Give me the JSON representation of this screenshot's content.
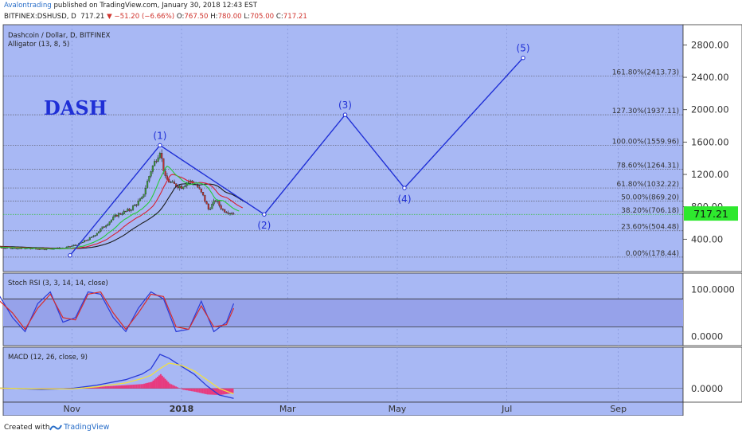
{
  "header": {
    "author": "Avalontrading",
    "published": "published on TradingView.com, January 30, 2018 12:43 EST",
    "symbol": "BITFINEX:DSHUSD, D",
    "last": "717.21",
    "change": "−51.20 (−6.66%)",
    "o_label": "O:",
    "o_val": "767.50",
    "h_label": "H:",
    "h_val": "780.00",
    "l_label": "L:",
    "l_val": "705.00",
    "c_label": "C:",
    "c_val": "717.21"
  },
  "footer": {
    "created_with": "Created with",
    "brand": "TradingView"
  },
  "colors": {
    "pane_bg": "#a8b8f4",
    "wave": "#1f2fd6",
    "fib": "#5a5a66",
    "last_price_badge": "#2ee82e",
    "alligator_jaw": "#1a1a1a",
    "alligator_teeth": "#d81f2f",
    "alligator_lips": "#27c93a",
    "up_candle": "#3b9a3b",
    "down_candle": "#c23030"
  },
  "chart_data": [
    {
      "type": "line",
      "pane": "price",
      "title": "Dashcoin / Dollar, D, BITFINEX",
      "indicator": "Alligator (13, 8, 5)",
      "annotation_text": "DASH",
      "x_ticks": [
        "Nov",
        "2018",
        "Mar",
        "May",
        "Jul",
        "Sep"
      ],
      "y_ticks": [
        "2800.00",
        "2400.00",
        "2000.00",
        "1600.00",
        "1200.00",
        "800.00",
        "400.00"
      ],
      "ylim": [
        0,
        3050
      ],
      "last_price": "717.21",
      "last_price_value": 717.21,
      "fib_levels": [
        {
          "label": "0.00%(178.44)",
          "value": 178.44
        },
        {
          "label": "23.60%(504.48)",
          "value": 504.48
        },
        {
          "label": "38.20%(706.18)",
          "value": 706.18
        },
        {
          "label": "50.00%(869.20)",
          "value": 869.2
        },
        {
          "label": "61.80%(1032.22)",
          "value": 1032.22
        },
        {
          "label": "78.60%(1264.31)",
          "value": 1264.31
        },
        {
          "label": "100.00%(1559.96)",
          "value": 1559.96
        },
        {
          "label": "127.30%(1937.11)",
          "value": 1937.11
        },
        {
          "label": "161.80%(2413.73)",
          "value": 2413.73
        }
      ],
      "wave_points": [
        {
          "label": "",
          "x": "2017-10-31",
          "y": 200
        },
        {
          "label": "(1)",
          "x": "2017-12-20",
          "y": 1560
        },
        {
          "label": "(2)",
          "x": "2018-02-16",
          "y": 706
        },
        {
          "label": "(3)",
          "x": "2018-04-02",
          "y": 1937
        },
        {
          "label": "(4)",
          "x": "2018-05-05",
          "y": 1032
        },
        {
          "label": "(5)",
          "x": "2018-07-10",
          "y": 2640
        }
      ],
      "close_series": {
        "x": [
          "2017-09-01",
          "2017-09-15",
          "2017-10-01",
          "2017-10-15",
          "2017-10-28",
          "2017-11-05",
          "2017-11-12",
          "2017-11-19",
          "2017-11-26",
          "2017-12-03",
          "2017-12-10",
          "2017-12-15",
          "2017-12-20",
          "2017-12-23",
          "2017-12-27",
          "2018-01-01",
          "2018-01-05",
          "2018-01-09",
          "2018-01-13",
          "2018-01-16",
          "2018-01-20",
          "2018-01-24",
          "2018-01-30"
        ],
        "y": [
          320,
          300,
          290,
          280,
          290,
          340,
          420,
          560,
          700,
          760,
          900,
          1250,
          1500,
          1150,
          1080,
          1050,
          1120,
          1080,
          930,
          770,
          880,
          760,
          717
        ]
      }
    },
    {
      "type": "line",
      "pane": "stoch_rsi",
      "title": "Stoch RSI (3, 3, 14, 14, close)",
      "y_ticks": [
        "100.0000",
        "0.0000"
      ],
      "ylim": [
        -20,
        135
      ],
      "bands": [
        80,
        20
      ],
      "x": [
        "2017-09-01",
        "2017-09-08",
        "2017-09-15",
        "2017-09-22",
        "2017-09-29",
        "2017-10-06",
        "2017-10-13",
        "2017-10-20",
        "2017-10-27",
        "2017-11-03",
        "2017-11-10",
        "2017-11-17",
        "2017-11-24",
        "2017-12-01",
        "2017-12-08",
        "2017-12-15",
        "2017-12-22",
        "2017-12-29",
        "2018-01-05",
        "2018-01-12",
        "2018-01-19",
        "2018-01-26",
        "2018-01-30"
      ],
      "series": [
        {
          "values": [
            90,
            20,
            10,
            85,
            40,
            10,
            70,
            95,
            30,
            40,
            95,
            90,
            40,
            10,
            60,
            95,
            80,
            10,
            15,
            75,
            10,
            30,
            70
          ]
        },
        {
          "values": [
            95,
            30,
            15,
            75,
            50,
            15,
            60,
            90,
            40,
            35,
            90,
            95,
            50,
            15,
            50,
            90,
            85,
            20,
            15,
            65,
            20,
            25,
            60
          ]
        }
      ]
    },
    {
      "type": "line",
      "pane": "macd",
      "title": "MACD (12, 26, close, 9)",
      "y_ticks": [
        "0.0000"
      ],
      "ylim": [
        -25,
        75
      ],
      "x": [
        "2017-09-01",
        "2017-09-15",
        "2017-10-01",
        "2017-10-15",
        "2017-11-01",
        "2017-11-15",
        "2017-12-01",
        "2017-12-10",
        "2017-12-15",
        "2017-12-20",
        "2017-12-25",
        "2018-01-01",
        "2018-01-08",
        "2018-01-15",
        "2018-01-22",
        "2018-01-30"
      ],
      "series": [
        {
          "values": [
            2,
            1,
            0,
            -2,
            0,
            6,
            16,
            26,
            36,
            62,
            55,
            40,
            26,
            5,
            -12,
            -18
          ]
        },
        {
          "values": [
            1,
            1,
            0,
            -1,
            -1,
            3,
            10,
            18,
            24,
            36,
            46,
            42,
            32,
            16,
            0,
            -10
          ]
        }
      ],
      "histogram": {
        "x": [
          "2017-09-01",
          "2017-09-15",
          "2017-10-01",
          "2017-10-15",
          "2017-11-01",
          "2017-11-15",
          "2017-12-01",
          "2017-12-10",
          "2017-12-15",
          "2017-12-20",
          "2017-12-25",
          "2018-01-01",
          "2018-01-08",
          "2018-01-15",
          "2018-01-22",
          "2018-01-30"
        ],
        "values": [
          1,
          0,
          0,
          -1,
          1,
          3,
          6,
          8,
          12,
          26,
          9,
          -2,
          -6,
          -11,
          -12,
          -8
        ]
      }
    }
  ]
}
